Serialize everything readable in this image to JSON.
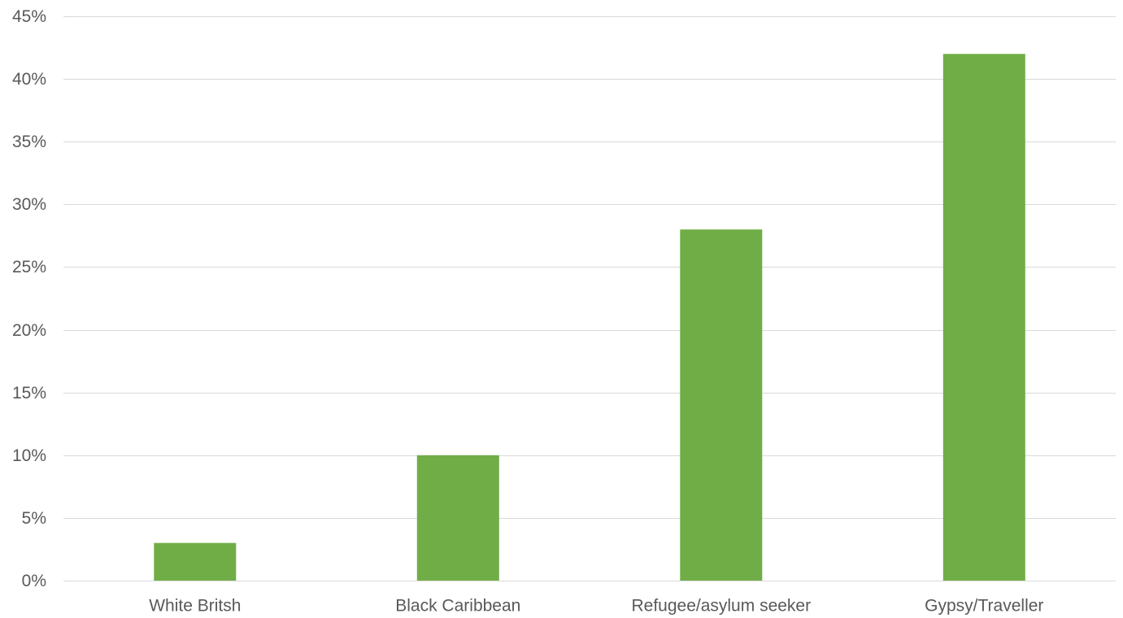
{
  "chart_data": {
    "type": "bar",
    "title": "",
    "xlabel": "",
    "ylabel": "",
    "categories": [
      "White Britsh",
      "Black Caribbean",
      "Refugee/asylum seeker",
      "Gypsy/Traveller"
    ],
    "values": [
      0.03,
      0.1,
      0.28,
      0.42
    ],
    "ylim": [
      0,
      0.45
    ],
    "y_ticks": [
      0,
      0.05,
      0.1,
      0.15,
      0.2,
      0.25,
      0.3,
      0.35,
      0.4,
      0.45
    ],
    "y_tick_labels": [
      "0%",
      "5%",
      "10%",
      "15%",
      "20%",
      "25%",
      "30%",
      "35%",
      "40%",
      "45%"
    ],
    "grid": true,
    "legend": "none",
    "bar_color": "#70ad47",
    "grid_color": "#d9d9d9",
    "label_color": "#595959"
  }
}
